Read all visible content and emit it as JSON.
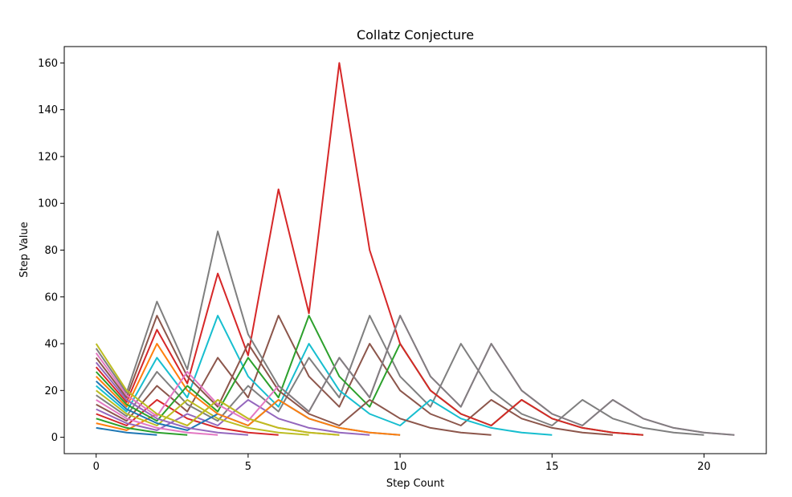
{
  "chart_data": {
    "type": "line",
    "title": "Collatz Conjecture",
    "xlabel": "Step Count",
    "ylabel": "Step Value",
    "xlim": [
      -1.05,
      22.05
    ],
    "ylim": [
      -7,
      167
    ],
    "xticks": [
      0,
      5,
      10,
      15,
      20
    ],
    "yticks": [
      0,
      20,
      40,
      60,
      80,
      100,
      120,
      140,
      160
    ],
    "grid": false,
    "legend": "none",
    "series": [
      {
        "color": "#1f77b4",
        "values": [
          4,
          2,
          1
        ]
      },
      {
        "color": "#ff7f0e",
        "values": [
          6,
          3,
          10,
          5,
          16,
          8,
          4,
          2,
          1
        ]
      },
      {
        "color": "#2ca02c",
        "values": [
          8,
          4,
          2,
          1
        ]
      },
      {
        "color": "#d62728",
        "values": [
          10,
          5,
          16,
          8,
          4,
          2,
          1
        ]
      },
      {
        "color": "#9467bd",
        "values": [
          12,
          6,
          3,
          10,
          5,
          16,
          8,
          4,
          2,
          1
        ]
      },
      {
        "color": "#8c564b",
        "values": [
          14,
          7,
          22,
          11,
          34,
          17,
          52,
          26,
          13,
          40,
          20,
          10,
          5,
          16,
          8,
          4,
          2,
          1
        ]
      },
      {
        "color": "#e377c2",
        "values": [
          16,
          8,
          4,
          2,
          1
        ]
      },
      {
        "color": "#7f7f7f",
        "values": [
          18,
          9,
          28,
          14,
          7,
          22,
          11,
          34,
          17,
          52,
          26,
          13,
          40,
          20,
          10,
          5,
          16,
          8,
          4,
          2,
          1
        ]
      },
      {
        "color": "#bcbd22",
        "values": [
          20,
          10,
          5,
          16,
          8,
          4,
          2,
          1
        ]
      },
      {
        "color": "#17becf",
        "values": [
          22,
          11,
          34,
          17,
          52,
          26,
          13,
          40,
          20,
          10,
          5,
          16,
          8,
          4,
          2,
          1
        ]
      },
      {
        "color": "#1f77b4",
        "values": [
          24,
          12,
          6,
          3,
          10,
          5,
          16,
          8,
          4,
          2,
          1
        ]
      },
      {
        "color": "#ff7f0e",
        "values": [
          26,
          13,
          40,
          20,
          10,
          5,
          16,
          8,
          4,
          2,
          1
        ]
      },
      {
        "color": "#2ca02c",
        "values": [
          28,
          14,
          7,
          22,
          11,
          34,
          17,
          52,
          26,
          13,
          40,
          20,
          10,
          5,
          16,
          8,
          4,
          2,
          1
        ]
      },
      {
        "color": "#d62728",
        "values": [
          30,
          15,
          46,
          23,
          70,
          35,
          106,
          53,
          160,
          80,
          40,
          20,
          10,
          5,
          16,
          8,
          4,
          2,
          1
        ]
      },
      {
        "color": "#9467bd",
        "values": [
          32,
          16,
          8,
          4,
          2,
          1
        ]
      },
      {
        "color": "#8c564b",
        "values": [
          34,
          17,
          52,
          26,
          13,
          40,
          20,
          10,
          5,
          16,
          8,
          4,
          2,
          1
        ]
      },
      {
        "color": "#e377c2",
        "values": [
          36,
          18,
          9,
          28,
          14,
          7,
          22,
          11,
          34,
          17,
          52,
          26,
          13,
          40,
          20,
          10,
          5,
          16,
          8,
          4,
          2,
          1
        ]
      },
      {
        "color": "#7f7f7f",
        "values": [
          38,
          19,
          58,
          29,
          88,
          44,
          22,
          11,
          34,
          17,
          52,
          26,
          13,
          40,
          20,
          10,
          5,
          16,
          8,
          4,
          2,
          1
        ]
      },
      {
        "color": "#bcbd22",
        "values": [
          40,
          20,
          10,
          5,
          16,
          8,
          4,
          2,
          1
        ]
      }
    ]
  }
}
